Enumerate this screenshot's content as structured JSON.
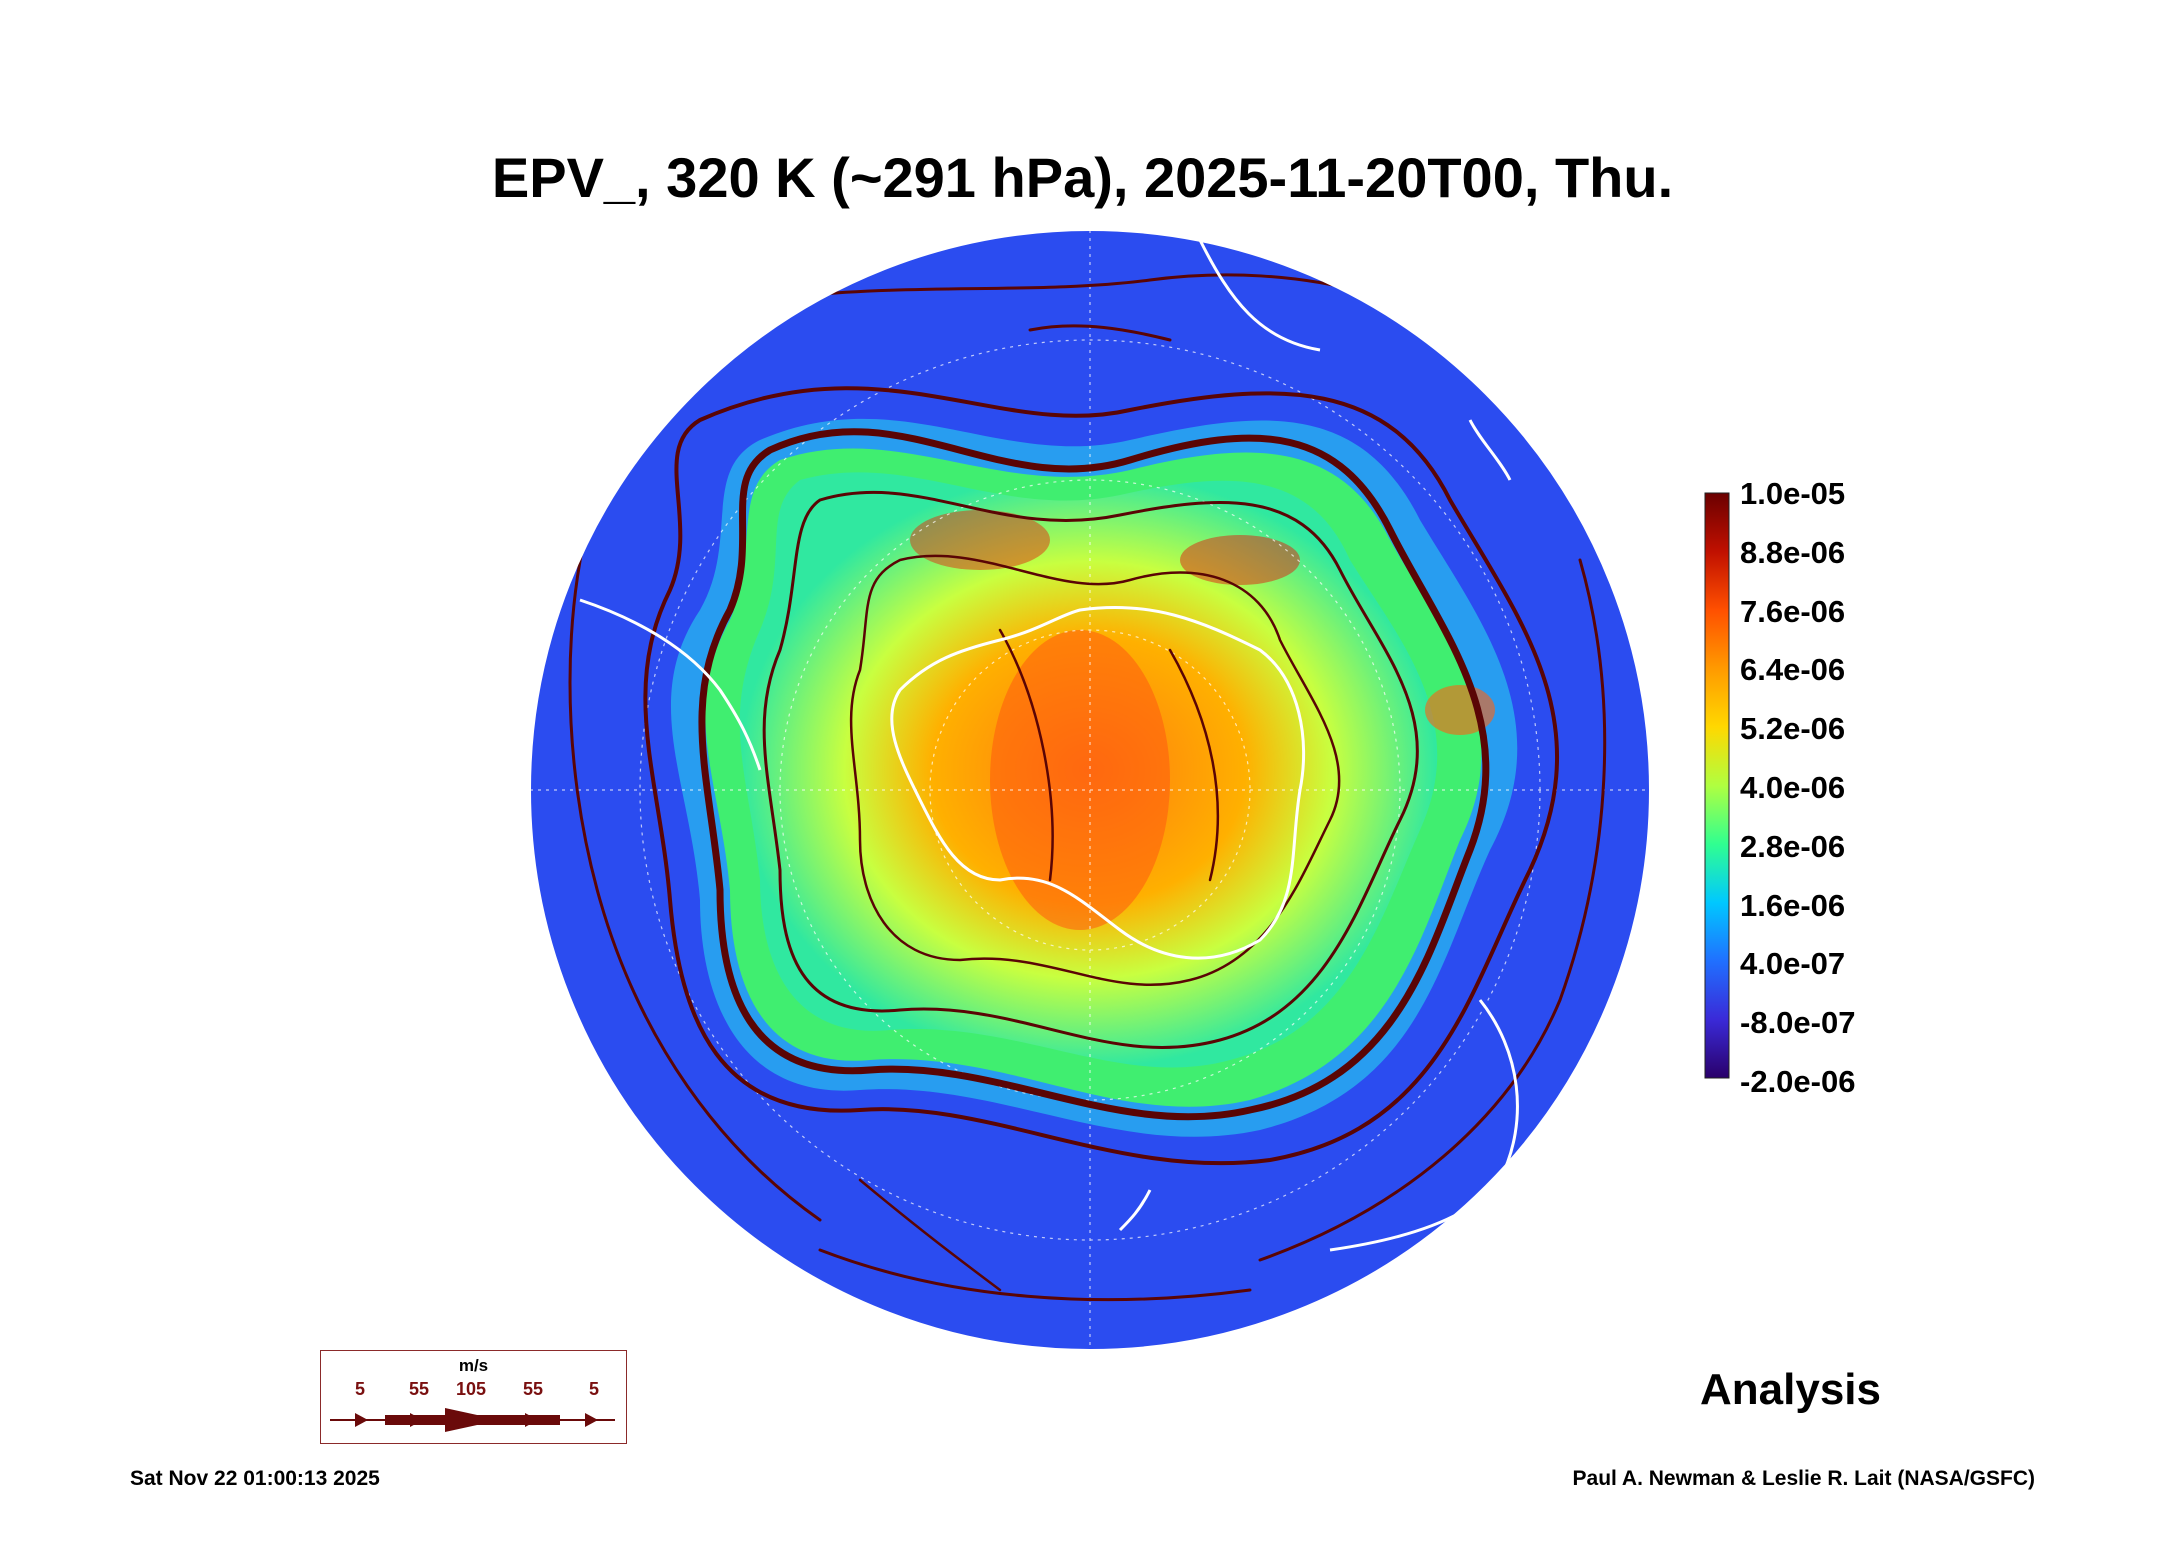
{
  "title": "EPV_, 320 K (~291 hPa), 2025-11-20T00, Thu.",
  "colorbar": {
    "labels": [
      "1.0e-05",
      "8.8e-06",
      "7.6e-06",
      "6.4e-06",
      "5.2e-06",
      "4.0e-06",
      "2.8e-06",
      "1.6e-06",
      "4.0e-07",
      "-8.0e-07",
      "-2.0e-06"
    ],
    "colors": [
      "#6b0000",
      "#c01000",
      "#ff5000",
      "#ff9a00",
      "#ffd800",
      "#b0ff40",
      "#30ff90",
      "#00c8ff",
      "#2070ff",
      "#3a2ad8",
      "#2a006a"
    ]
  },
  "map": {
    "projection": "south-polar-stereographic",
    "background_color": "#2b4cf0",
    "streamline_color": "#5a0505",
    "coastline_color": "#ffffff"
  },
  "wind_legend": {
    "unit": "m/s",
    "values": [
      "5",
      "55",
      "105",
      "55",
      "5"
    ]
  },
  "analysis_label": "Analysis",
  "footer": {
    "timestamp": "Sat Nov 22 01:00:13 2025",
    "credit": "Paul A. Newman & Leslie R. Lait (NASA/GSFC)"
  }
}
